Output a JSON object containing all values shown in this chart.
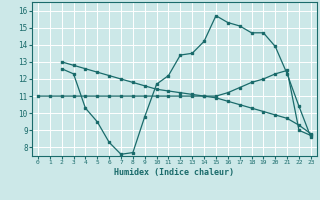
{
  "xlabel": "Humidex (Indice chaleur)",
  "xlim": [
    -0.5,
    23.5
  ],
  "ylim": [
    7.5,
    16.5
  ],
  "yticks": [
    8,
    9,
    10,
    11,
    12,
    13,
    14,
    15,
    16
  ],
  "xticks": [
    0,
    1,
    2,
    3,
    4,
    5,
    6,
    7,
    8,
    9,
    10,
    11,
    12,
    13,
    14,
    15,
    16,
    17,
    18,
    19,
    20,
    21,
    22,
    23
  ],
  "bg_color": "#cce8e8",
  "line_color": "#1a6b6b",
  "grid_color": "#ffffff",
  "line1_x": [
    0,
    1,
    2,
    3,
    4,
    5,
    6,
    7,
    8,
    9,
    10,
    11,
    12,
    13,
    14,
    15,
    16,
    17,
    18,
    19,
    20,
    21,
    22,
    23
  ],
  "line1_y": [
    11,
    11,
    11,
    11,
    11,
    11,
    11,
    11,
    11,
    11,
    11,
    11,
    11,
    11,
    11,
    11,
    11.2,
    11.5,
    11.8,
    12.0,
    12.3,
    12.5,
    9.0,
    8.7
  ],
  "line2_x": [
    2,
    3,
    4,
    5,
    6,
    7,
    8,
    9,
    10,
    11,
    12,
    13,
    14,
    15,
    16,
    17,
    18,
    19,
    20,
    21,
    22,
    23
  ],
  "line2_y": [
    12.6,
    12.3,
    10.3,
    9.5,
    8.3,
    7.6,
    7.7,
    9.8,
    11.7,
    12.2,
    13.4,
    13.5,
    14.2,
    15.7,
    15.3,
    15.1,
    14.7,
    14.7,
    13.9,
    12.3,
    10.4,
    8.6
  ],
  "line3_x": [
    2,
    3,
    4,
    5,
    6,
    7,
    8,
    9,
    10,
    11,
    12,
    13,
    14,
    15,
    16,
    17,
    18,
    19,
    20,
    21,
    22,
    23
  ],
  "line3_y": [
    13.0,
    12.8,
    12.6,
    12.4,
    12.2,
    12.0,
    11.8,
    11.6,
    11.4,
    11.3,
    11.2,
    11.1,
    11.0,
    10.9,
    10.7,
    10.5,
    10.3,
    10.1,
    9.9,
    9.7,
    9.3,
    8.8
  ]
}
